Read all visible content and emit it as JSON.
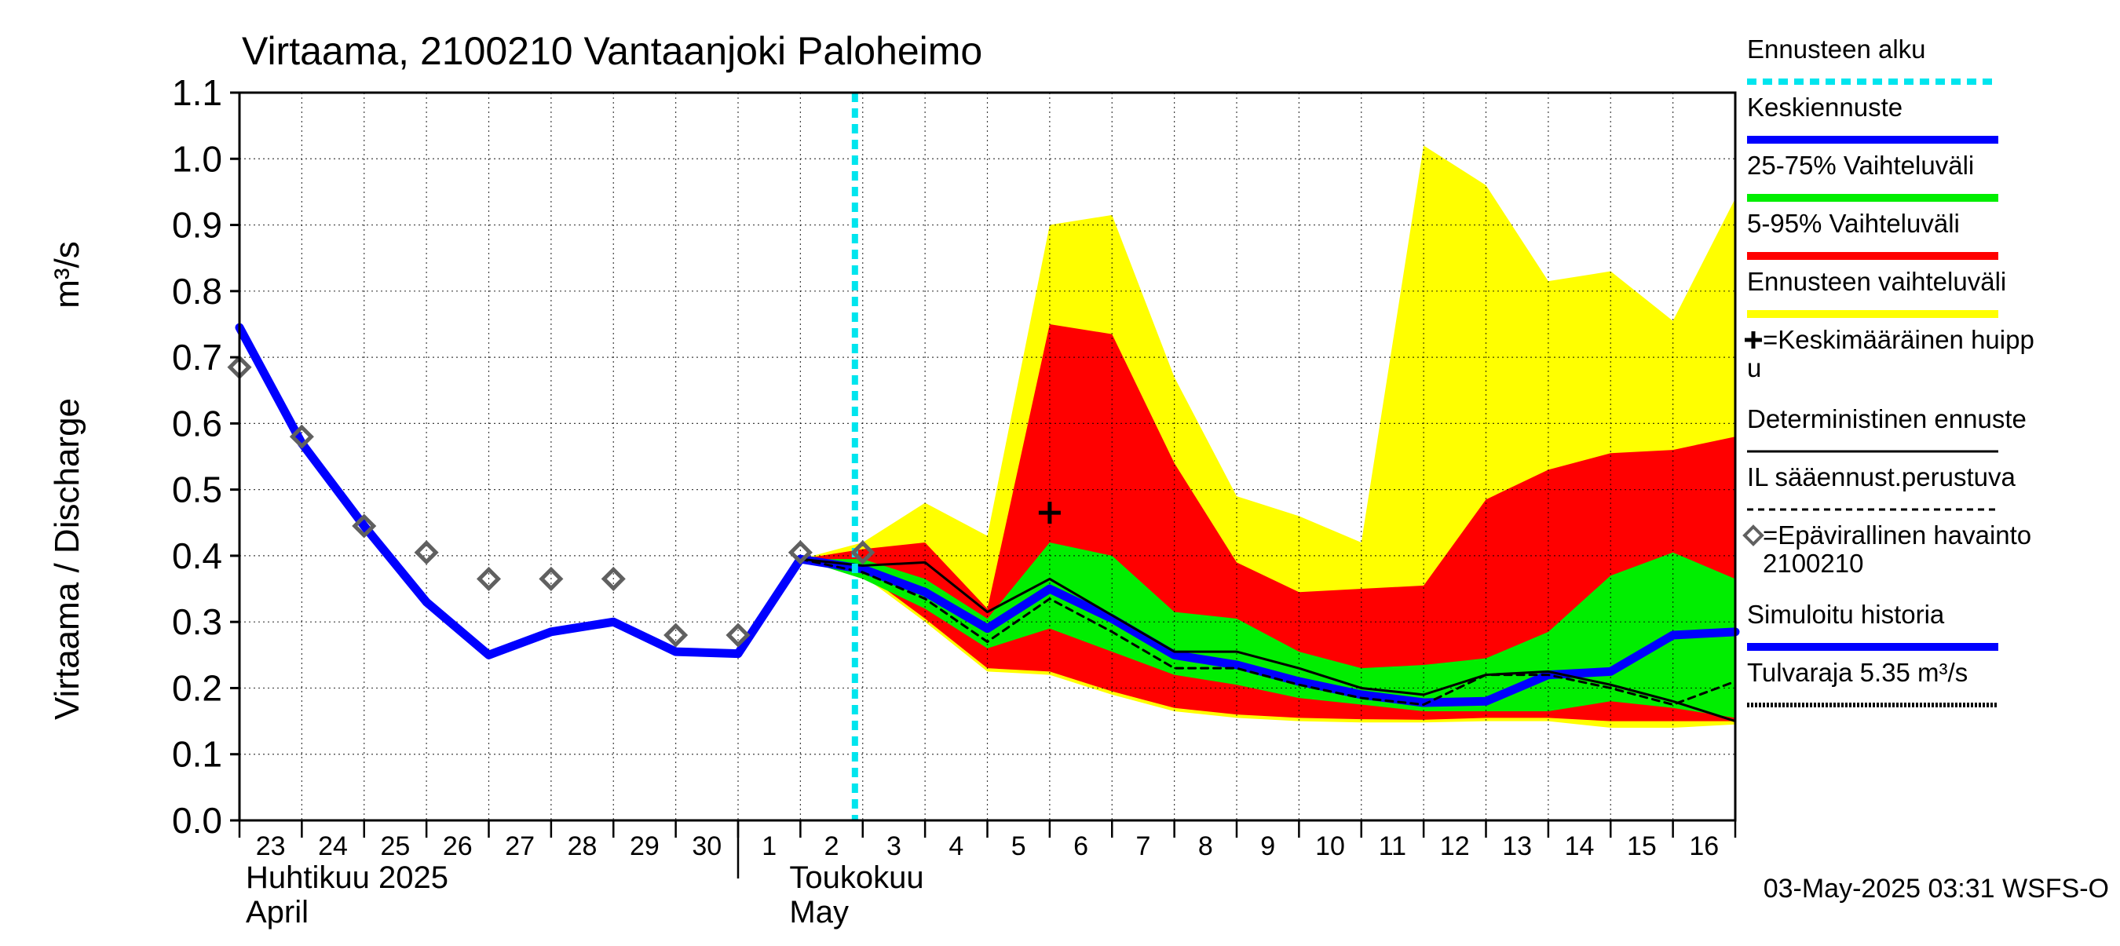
{
  "chart_data": {
    "type": "area",
    "title": "Virtaama, 2100210 Vantaanjoki Paloheimo",
    "ylabel": "Virtaama / Discharge",
    "yunit": "m³/s",
    "ylim": [
      0.0,
      1.1
    ],
    "yticks": [
      "0.0",
      "0.1",
      "0.2",
      "0.3",
      "0.4",
      "0.5",
      "0.6",
      "0.7",
      "0.8",
      "0.9",
      "1.0",
      "1.1"
    ],
    "xlim_days": [
      23,
      47
    ],
    "x_tick_labels": [
      "23",
      "24",
      "25",
      "26",
      "27",
      "28",
      "29",
      "30",
      "1",
      "2",
      "3",
      "4",
      "5",
      "6",
      "7",
      "8",
      "9",
      "10",
      "11",
      "12",
      "13",
      "14",
      "15",
      "16"
    ],
    "month_labels": [
      {
        "fi": "Huhtikuu  2025",
        "en": "April"
      },
      {
        "fi": "Toukokuu",
        "en": "May"
      }
    ],
    "grid": true,
    "legend_position": "right",
    "forecast_start": "2025-05-02 21:00",
    "x_days": [
      "04-23",
      "04-24",
      "04-25",
      "04-26",
      "04-27",
      "04-28",
      "04-29",
      "04-30",
      "05-01",
      "05-02",
      "05-03",
      "05-04",
      "05-05",
      "05-06",
      "05-07",
      "05-08",
      "05-09",
      "05-10",
      "05-11",
      "05-12",
      "05-13",
      "05-14",
      "05-15",
      "05-16",
      "05-17"
    ],
    "series": [
      {
        "name": "Ennusteen vaihteluväli",
        "kind": "band",
        "color": "#ffff00",
        "x": [
          "05-02",
          "05-03",
          "05-04",
          "05-05",
          "05-06",
          "05-07",
          "05-08",
          "05-09",
          "05-10",
          "05-11",
          "05-12",
          "05-13",
          "05-14",
          "05-15",
          "05-16",
          "05-17"
        ],
        "upper": [
          0.395,
          0.42,
          0.48,
          0.43,
          0.9,
          0.915,
          0.67,
          0.49,
          0.46,
          0.42,
          1.02,
          0.96,
          0.815,
          0.83,
          0.755,
          0.94
        ],
        "lower": [
          0.395,
          0.37,
          0.3,
          0.225,
          0.22,
          0.19,
          0.165,
          0.155,
          0.15,
          0.148,
          0.148,
          0.15,
          0.15,
          0.14,
          0.14,
          0.145
        ]
      },
      {
        "name": "5-95% Vaihteluväli",
        "kind": "band",
        "color": "#ff0000",
        "x": [
          "05-02",
          "05-03",
          "05-04",
          "05-05",
          "05-06",
          "05-07",
          "05-08",
          "05-09",
          "05-10",
          "05-11",
          "05-12",
          "05-13",
          "05-14",
          "05-15",
          "05-16",
          "05-17"
        ],
        "upper": [
          0.395,
          0.41,
          0.42,
          0.32,
          0.75,
          0.735,
          0.54,
          0.39,
          0.345,
          0.35,
          0.355,
          0.485,
          0.53,
          0.555,
          0.56,
          0.58
        ],
        "lower": [
          0.395,
          0.375,
          0.305,
          0.23,
          0.225,
          0.195,
          0.17,
          0.16,
          0.155,
          0.153,
          0.152,
          0.155,
          0.155,
          0.15,
          0.15,
          0.15
        ]
      },
      {
        "name": "25-75% Vaihteluväli",
        "kind": "band",
        "color": "#00ee00",
        "x": [
          "05-02",
          "05-03",
          "05-04",
          "05-05",
          "05-06",
          "05-07",
          "05-08",
          "05-09",
          "05-10",
          "05-11",
          "05-12",
          "05-13",
          "05-14",
          "05-15",
          "05-16",
          "05-17"
        ],
        "upper": [
          0.395,
          0.395,
          0.365,
          0.305,
          0.42,
          0.4,
          0.315,
          0.305,
          0.255,
          0.23,
          0.235,
          0.245,
          0.285,
          0.37,
          0.405,
          0.365
        ],
        "lower": [
          0.395,
          0.365,
          0.32,
          0.26,
          0.29,
          0.255,
          0.22,
          0.205,
          0.185,
          0.175,
          0.165,
          0.165,
          0.165,
          0.18,
          0.17,
          0.155
        ]
      },
      {
        "name": "Keskiennuste",
        "kind": "line",
        "color": "#0000ff",
        "x": [
          "05-02",
          "05-03",
          "05-04",
          "05-05",
          "05-06",
          "05-07",
          "05-08",
          "05-09",
          "05-10",
          "05-11",
          "05-12",
          "05-13",
          "05-14",
          "05-15",
          "05-16",
          "05-17"
        ],
        "values": [
          0.395,
          0.38,
          0.345,
          0.29,
          0.35,
          0.305,
          0.25,
          0.235,
          0.21,
          0.19,
          0.178,
          0.18,
          0.22,
          0.225,
          0.28,
          0.285
        ]
      },
      {
        "name": "Deterministinen ennuste",
        "kind": "line",
        "color": "#000000",
        "x": [
          "05-02",
          "05-03",
          "05-04",
          "05-05",
          "05-06",
          "05-07",
          "05-08",
          "05-09",
          "05-10",
          "05-11",
          "05-12",
          "05-13",
          "05-14",
          "05-15",
          "05-16",
          "05-17"
        ],
        "values": [
          0.395,
          0.385,
          0.39,
          0.315,
          0.365,
          0.31,
          0.255,
          0.255,
          0.23,
          0.2,
          0.19,
          0.22,
          0.225,
          0.205,
          0.18,
          0.15
        ]
      },
      {
        "name": "IL sääennust.perustuva",
        "kind": "line",
        "color": "#000000",
        "x": [
          "05-02",
          "05-03",
          "05-04",
          "05-05",
          "05-06",
          "05-07",
          "05-08",
          "05-09",
          "05-10",
          "05-11",
          "05-12",
          "05-13",
          "05-14",
          "05-15",
          "05-16",
          "05-17"
        ],
        "values": [
          0.395,
          0.375,
          0.335,
          0.27,
          0.335,
          0.285,
          0.23,
          0.23,
          0.205,
          0.185,
          0.175,
          0.22,
          0.22,
          0.2,
          0.175,
          0.21
        ]
      },
      {
        "name": "Simuloitu historia",
        "kind": "line",
        "color": "#0000ff",
        "x": [
          "04-23",
          "04-24",
          "04-25",
          "04-26",
          "04-27",
          "04-28",
          "04-29",
          "04-30",
          "05-01",
          "05-02"
        ],
        "values": [
          0.745,
          0.57,
          0.445,
          0.33,
          0.25,
          0.285,
          0.3,
          0.255,
          0.252,
          0.395
        ]
      },
      {
        "name": "=Epävirallinen havainto 2100210",
        "kind": "markers",
        "color": "#606060",
        "x": [
          "04-23",
          "04-24",
          "04-25",
          "04-26",
          "04-27",
          "04-28",
          "04-29",
          "04-30",
          "05-01",
          "05-02",
          "05-03"
        ],
        "values": [
          0.685,
          0.58,
          0.445,
          0.405,
          0.365,
          0.365,
          0.365,
          0.28,
          0.28,
          0.405,
          0.405
        ]
      },
      {
        "name": "=Keskimääräinen huippu",
        "kind": "marker",
        "color": "#000000",
        "x": [
          "05-06"
        ],
        "values": [
          0.465
        ]
      }
    ],
    "legend": [
      {
        "label": "Ennusteen alku",
        "style": "dotted",
        "color": "#00e5ee"
      },
      {
        "label": "Keskiennuste",
        "style": "thick",
        "color": "#0000ff"
      },
      {
        "label": "25-75% Vaihteluväli",
        "style": "thick",
        "color": "#00ee00"
      },
      {
        "label": "5-95% Vaihteluväli",
        "style": "thick",
        "color": "#ff0000"
      },
      {
        "label": "Ennusteen vaihteluväli",
        "style": "thick",
        "color": "#ffff00"
      },
      {
        "label": "=Keskimääräinen huipp",
        "label2": "u",
        "style": "plus",
        "color": "#000000"
      },
      {
        "label": "Deterministinen ennuste",
        "style": "thin",
        "color": "#000000"
      },
      {
        "label": "IL sääennust.perustuva",
        "style": "dashed",
        "color": "#000000"
      },
      {
        "label": "=Epävirallinen havainto",
        "label2": "2100210",
        "style": "diamond",
        "color": "#606060"
      },
      {
        "label": "Simuloitu historia",
        "style": "thick",
        "color": "#0000ff"
      },
      {
        "label": "Tulvaraja 5.35 m³/s",
        "style": "dotted-thick",
        "color": "#000000"
      }
    ],
    "footer": "03-May-2025 03:31 WSFS-O"
  }
}
